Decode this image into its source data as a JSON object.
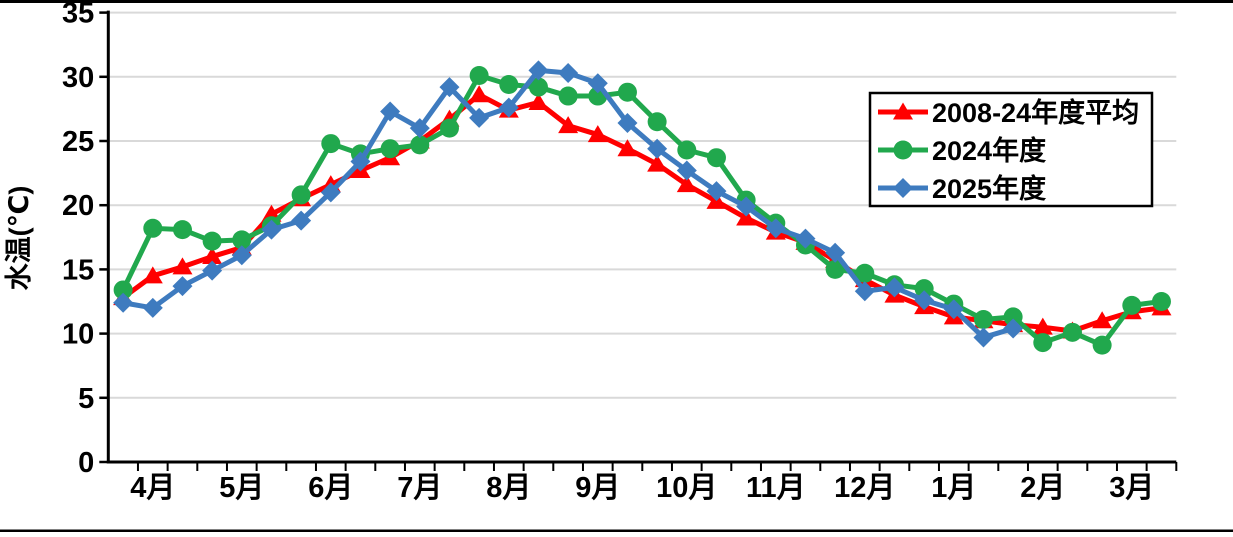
{
  "chart_data": {
    "type": "line",
    "title": "",
    "xlabel": "",
    "ylabel": "水温(℃)",
    "ylim": [
      0,
      35
    ],
    "ytick_step": 5,
    "yticks": [
      0,
      5,
      10,
      15,
      20,
      25,
      30,
      35
    ],
    "grid": "horizontal",
    "gridline_color": "#d9d9d9",
    "axis_color": "#000000",
    "legend_position": "upper right",
    "months": [
      "4月",
      "5月",
      "6月",
      "7月",
      "8月",
      "9月",
      "10月",
      "11月",
      "12月",
      "1月",
      "2月",
      "3月"
    ],
    "periods_per_month": 3,
    "categories": [
      "4月上旬",
      "4月中旬",
      "4月下旬",
      "5月上旬",
      "5月中旬",
      "5月下旬",
      "6月上旬",
      "6月中旬",
      "6月下旬",
      "7月上旬",
      "7月中旬",
      "7月下旬",
      "8月上旬",
      "8月中旬",
      "8月下旬",
      "9月上旬",
      "9月中旬",
      "9月下旬",
      "10月上旬",
      "10月中旬",
      "10月下旬",
      "11月上旬",
      "11月中旬",
      "11月下旬",
      "12月上旬",
      "12月中旬",
      "12月下旬",
      "1月上旬",
      "1月中旬",
      "1月下旬",
      "2月上旬",
      "2月中旬",
      "2月下旬",
      "3月上旬",
      "3月中旬",
      "3月下旬"
    ],
    "series": [
      {
        "name": "2008-24年度平均",
        "color": "#ff0000",
        "marker": "triangle",
        "values": [
          12.8,
          14.5,
          15.2,
          16.0,
          16.7,
          19.3,
          20.5,
          21.6,
          22.7,
          23.7,
          25.0,
          26.7,
          28.6,
          27.4,
          28.0,
          26.2,
          25.5,
          24.4,
          23.2,
          21.6,
          20.3,
          19.0,
          17.9,
          17.1,
          15.7,
          14.2,
          13.0,
          12.1,
          11.3,
          11.0,
          10.7,
          10.5,
          10.2,
          11.0,
          11.7,
          12.0
        ]
      },
      {
        "name": "2024年度",
        "color": "#21a84d",
        "marker": "circle",
        "values": [
          13.4,
          18.2,
          18.1,
          17.2,
          17.3,
          18.4,
          20.8,
          24.8,
          24.0,
          24.4,
          24.7,
          26.0,
          30.1,
          29.4,
          29.2,
          28.5,
          28.5,
          28.8,
          26.5,
          24.3,
          23.7,
          20.4,
          18.6,
          16.9,
          15.0,
          14.7,
          13.8,
          13.5,
          12.3,
          11.1,
          11.3,
          9.3,
          10.1,
          9.1,
          12.2,
          12.5
        ]
      },
      {
        "name": "2025年度",
        "color": "#3e7bbf",
        "marker": "diamond",
        "values": [
          12.4,
          12.0,
          13.7,
          14.9,
          16.1,
          18.1,
          18.8,
          21.0,
          23.4,
          27.3,
          26.0,
          29.2,
          26.8,
          27.6,
          30.5,
          30.3,
          29.5,
          26.4,
          24.4,
          22.7,
          21.1,
          19.9,
          18.2,
          17.4,
          16.3,
          13.3,
          13.6,
          12.6,
          11.9,
          9.7,
          10.4
        ]
      }
    ]
  },
  "page": {
    "top_rule_color": "#000000",
    "bottom_rule_color": "#000000",
    "background": "#ffffff"
  }
}
